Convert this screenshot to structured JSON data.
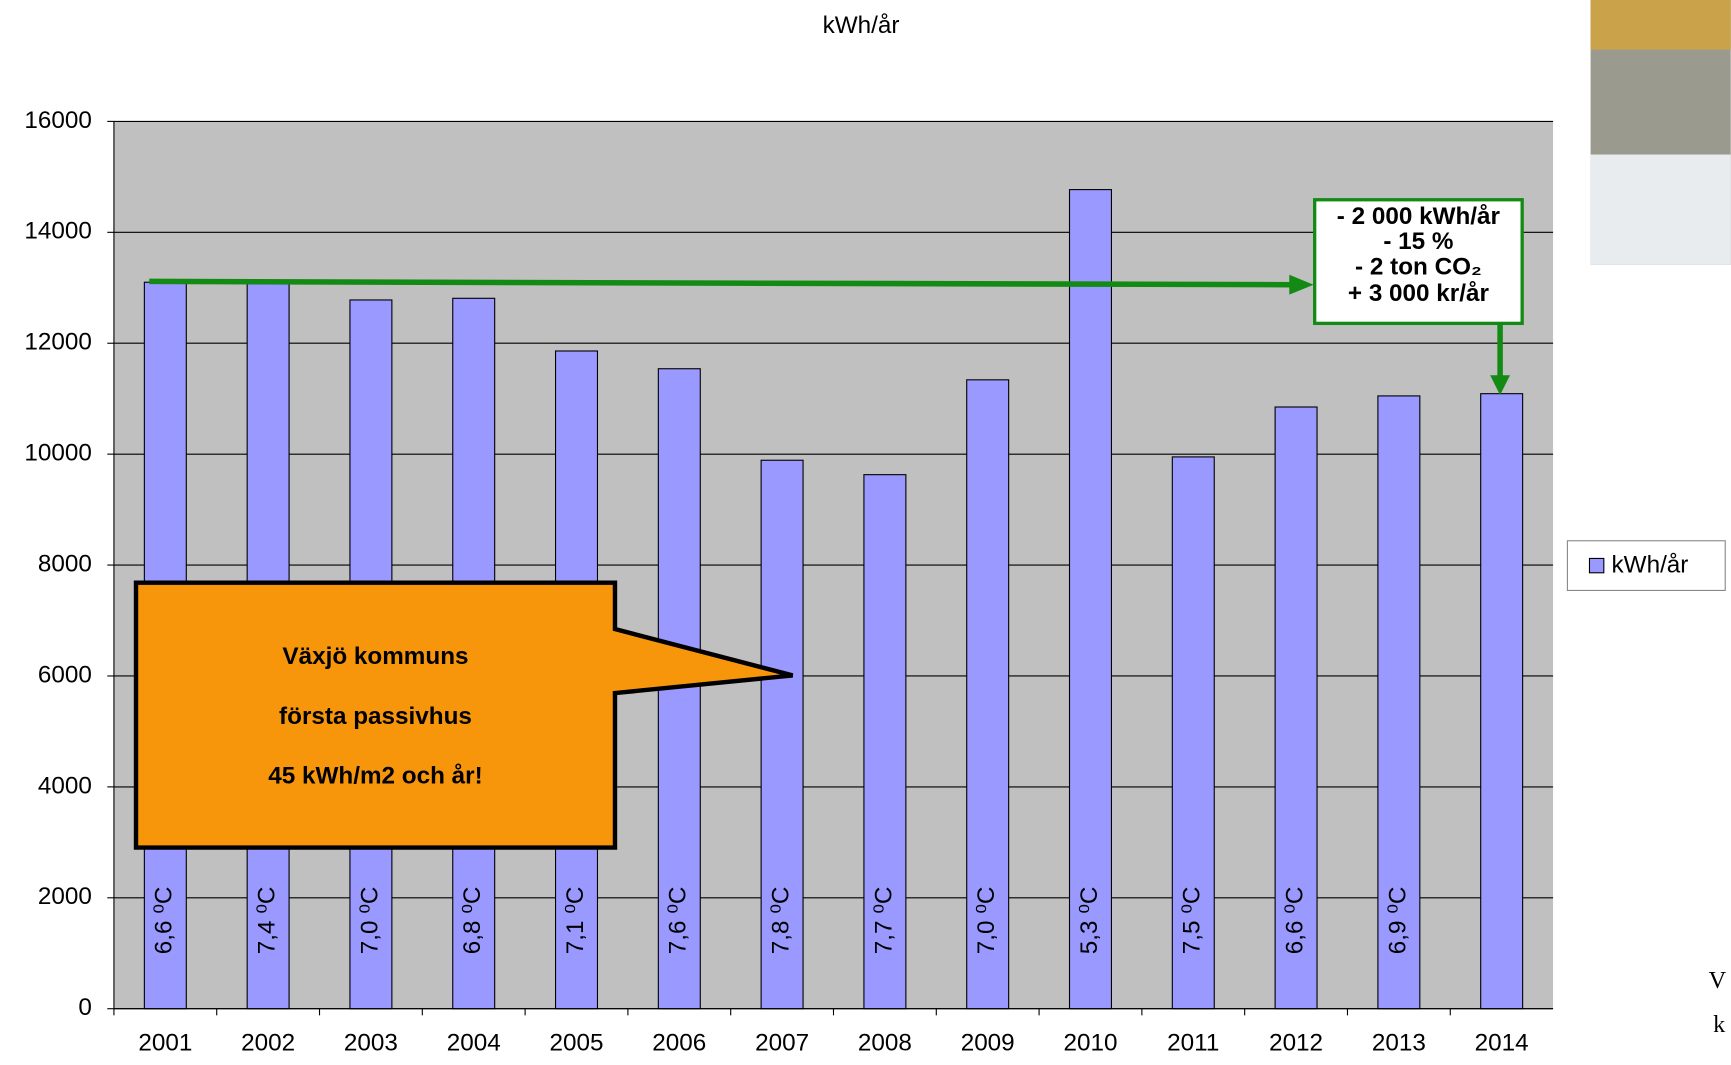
{
  "chart_data": {
    "type": "bar",
    "title": "kWh/år",
    "categories": [
      "2001",
      "2002",
      "2003",
      "2004",
      "2005",
      "2006",
      "2007",
      "2008",
      "2009",
      "2010",
      "2011",
      "2012",
      "2013",
      "2014"
    ],
    "series": [
      {
        "name": "kWh/år",
        "color": "#9999ff",
        "values": [
          13100,
          13100,
          12780,
          12810,
          11860,
          11540,
          9890,
          9630,
          11340,
          14770,
          9950,
          10850,
          11050,
          11090
        ]
      }
    ],
    "bar_labels": [
      "6,6 ⁰C",
      "7,4 ⁰C",
      "7,0 ⁰C",
      "6,8 ⁰C",
      "7,1 ⁰C",
      "7,6 ⁰C",
      "7,8 ⁰C",
      "7,7 ⁰C",
      "7,0 ⁰C",
      "5,3 ⁰C",
      "7,5 ⁰C",
      "6,6 ⁰C",
      "6,9 ⁰C",
      null
    ],
    "ylim": [
      0,
      16000
    ],
    "yticks": [
      0,
      2000,
      4000,
      6000,
      8000,
      10000,
      12000,
      14000,
      16000
    ],
    "grid": true,
    "legend": "right",
    "annotation_box": [
      "- 2 000 kWh/år",
      "- 15 %",
      "- 2 ton CO₂",
      "+ 3 000 kr/år"
    ],
    "callout": [
      "Växjö kommuns",
      "första passivhus",
      "45 kWh/m2 och år!"
    ]
  },
  "corner_text": [
    "V",
    "k"
  ]
}
